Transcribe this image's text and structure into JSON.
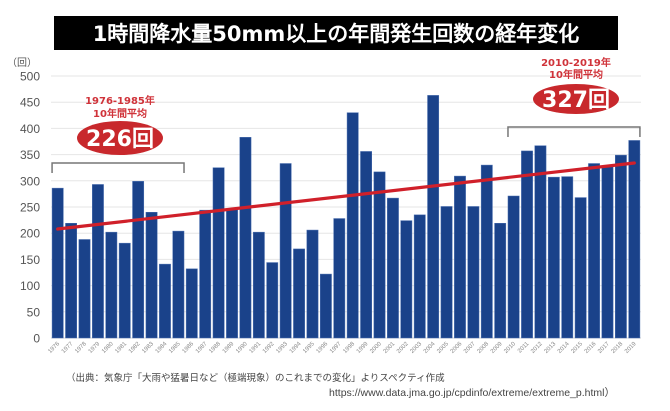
{
  "title": "1時間降水量50mm以上の年間発生回数の経年変化",
  "source": {
    "line1": "（出典：気象庁「大雨や猛暑日など（極端現象）のこれまでの変化」よりスペクティ作成",
    "line2": "https://www.data.jma.go.jp/cpdinfo/extreme/extreme_p.html）"
  },
  "colors": {
    "bar": "#1a428a",
    "trend": "#d0202a",
    "ellipse": "#c8282c",
    "annotation_text": "#d0333a",
    "bracket": "#777777",
    "grid": "#e6e6e6",
    "axis_text": "#555555"
  },
  "chart_data": {
    "type": "bar",
    "title": "1時間降水量50mm以上の年間発生回数の経年変化",
    "xlabel": "",
    "ylabel": "（回）",
    "ylim": [
      0,
      500
    ],
    "yticks": [
      0,
      50,
      100,
      150,
      200,
      250,
      300,
      350,
      400,
      450,
      500
    ],
    "grid": true,
    "categories": [
      "1976",
      "1977",
      "1978",
      "1979",
      "1980",
      "1981",
      "1982",
      "1983",
      "1984",
      "1985",
      "1986",
      "1987",
      "1988",
      "1989",
      "1990",
      "1991",
      "1992",
      "1993",
      "1994",
      "1995",
      "1996",
      "1997",
      "1998",
      "1999",
      "2000",
      "2001",
      "2002",
      "2003",
      "2004",
      "2005",
      "2006",
      "2007",
      "2008",
      "2009",
      "2010",
      "2011",
      "2012",
      "2013",
      "2014",
      "2015",
      "2016",
      "2017",
      "2018",
      "2019"
    ],
    "values": [
      286,
      219,
      188,
      293,
      202,
      181,
      299,
      240,
      141,
      204,
      132,
      244,
      325,
      246,
      383,
      202,
      144,
      333,
      170,
      206,
      122,
      228,
      430,
      356,
      317,
      267,
      224,
      235,
      463,
      251,
      309,
      251,
      330,
      219,
      271,
      357,
      367,
      307,
      308,
      268,
      333,
      327,
      349,
      377
    ],
    "trend_line": {
      "start": {
        "x": "1976",
        "y": 208
      },
      "end": {
        "x": "2019",
        "y": 334
      }
    },
    "annotations": [
      {
        "period": "1976-1985年",
        "label": "10年間平均",
        "value_label": "226回",
        "from": "1976",
        "to": "1985"
      },
      {
        "period": "2010-2019年",
        "label": "10年間平均",
        "value_label": "327回",
        "from": "2010",
        "to": "2019"
      }
    ]
  }
}
